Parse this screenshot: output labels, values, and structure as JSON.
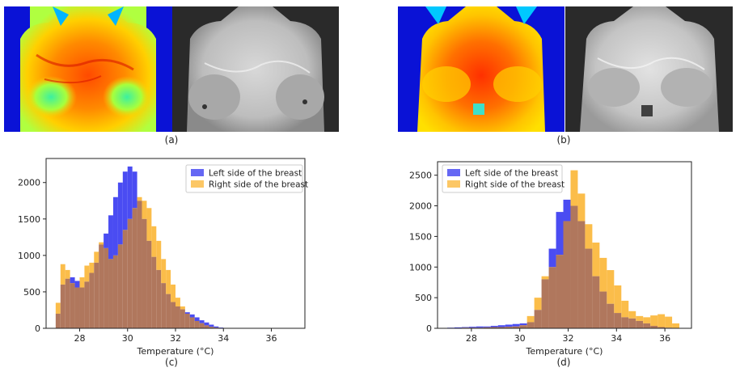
{
  "captions": {
    "a": "(a)",
    "b": "(b)",
    "c": "(c)",
    "d": "(d)"
  },
  "colors": {
    "left_series": "#4a4cf2",
    "right_series": "#fbbd4a",
    "overlap": "#b0775d",
    "axis": "#222222",
    "background": "#ffffff"
  },
  "chart_data": [
    {
      "type": "bar",
      "subtype": "histogram",
      "xlabel": "Temperature (°C)",
      "ylabel": "",
      "xlim": [
        26.6,
        37.4
      ],
      "ylim": [
        0,
        2330
      ],
      "xticks": [
        28,
        30,
        32,
        34,
        36
      ],
      "yticks": [
        0,
        500,
        1000,
        1500,
        2000
      ],
      "legend_position": "top-right",
      "grid": false,
      "series": [
        {
          "name": "Left side of the breast",
          "color": "#4a4cf2",
          "x": [
            27.0,
            27.2,
            27.4,
            27.6,
            27.8,
            28.0,
            28.2,
            28.4,
            28.6,
            28.8,
            29.0,
            29.2,
            29.4,
            29.6,
            29.8,
            30.0,
            30.2,
            30.4,
            30.6,
            30.8,
            31.0,
            31.2,
            31.4,
            31.6,
            31.8,
            32.0,
            32.2,
            32.4,
            32.6,
            32.8,
            33.0,
            33.2,
            33.4,
            33.6,
            33.8
          ],
          "values": [
            200,
            600,
            680,
            700,
            650,
            560,
            640,
            760,
            900,
            1150,
            1300,
            1550,
            1800,
            2000,
            2150,
            2220,
            2150,
            1750,
            1500,
            1200,
            980,
            800,
            620,
            470,
            360,
            300,
            260,
            220,
            190,
            150,
            110,
            80,
            50,
            25,
            10
          ]
        },
        {
          "name": "Right side of the breast",
          "color": "#fbbd4a",
          "x": [
            27.0,
            27.2,
            27.4,
            27.6,
            27.8,
            28.0,
            28.2,
            28.4,
            28.6,
            28.8,
            29.0,
            29.2,
            29.4,
            29.6,
            29.8,
            30.0,
            30.2,
            30.4,
            30.6,
            30.8,
            31.0,
            31.2,
            31.4,
            31.6,
            31.8,
            32.0,
            32.2,
            32.4,
            32.6,
            32.8,
            33.0,
            33.2,
            33.4,
            33.6,
            33.8
          ],
          "values": [
            350,
            880,
            800,
            620,
            560,
            700,
            860,
            900,
            1050,
            1180,
            1100,
            950,
            1000,
            1150,
            1350,
            1500,
            1650,
            1800,
            1750,
            1650,
            1400,
            1200,
            950,
            800,
            600,
            420,
            300,
            200,
            150,
            100,
            70,
            40,
            20,
            10,
            5
          ]
        }
      ]
    },
    {
      "type": "bar",
      "subtype": "histogram",
      "xlabel": "Temperature (°C)",
      "ylabel": "",
      "xlim": [
        26.6,
        37.1
      ],
      "ylim": [
        0,
        2720
      ],
      "xticks": [
        28,
        30,
        32,
        34,
        36
      ],
      "yticks": [
        0,
        500,
        1000,
        1500,
        2000,
        2500
      ],
      "legend_position": "top-left",
      "grid": false,
      "series": [
        {
          "name": "Left side of the breast",
          "color": "#4a4cf2",
          "x": [
            27.0,
            27.3,
            27.6,
            27.9,
            28.2,
            28.5,
            28.8,
            29.1,
            29.4,
            29.7,
            30.0,
            30.3,
            30.6,
            30.9,
            31.2,
            31.5,
            31.8,
            32.1,
            32.4,
            32.7,
            33.0,
            33.3,
            33.6,
            33.9,
            34.2,
            34.5,
            34.8,
            35.1,
            35.4,
            35.7,
            36.0,
            36.3
          ],
          "values": [
            10,
            15,
            20,
            25,
            30,
            30,
            40,
            50,
            60,
            70,
            80,
            100,
            300,
            800,
            1300,
            1900,
            2100,
            2000,
            1750,
            1300,
            850,
            600,
            400,
            250,
            180,
            160,
            120,
            80,
            40,
            20,
            10,
            5
          ]
        },
        {
          "name": "Right side of the breast",
          "color": "#fbbd4a",
          "x": [
            27.0,
            27.3,
            27.6,
            27.9,
            28.2,
            28.5,
            28.8,
            29.1,
            29.4,
            29.7,
            30.0,
            30.3,
            30.6,
            30.9,
            31.2,
            31.5,
            31.8,
            32.1,
            32.4,
            32.7,
            33.0,
            33.3,
            33.6,
            33.9,
            34.2,
            34.5,
            34.8,
            35.1,
            35.4,
            35.7,
            36.0,
            36.3
          ],
          "values": [
            5,
            5,
            10,
            10,
            10,
            15,
            20,
            20,
            25,
            30,
            50,
            200,
            500,
            850,
            1000,
            1200,
            1750,
            2580,
            2200,
            1700,
            1400,
            1150,
            950,
            700,
            450,
            280,
            200,
            180,
            210,
            230,
            190,
            80
          ]
        }
      ]
    }
  ]
}
